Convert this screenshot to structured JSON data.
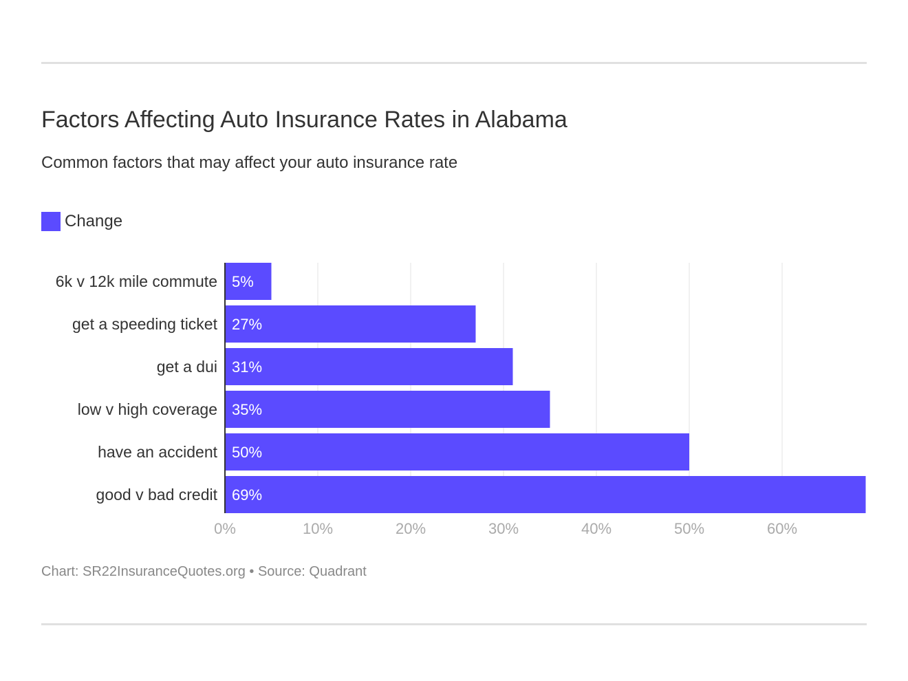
{
  "title": "Factors Affecting Auto Insurance Rates in Alabama",
  "subtitle": "Common factors that may affect your auto insurance rate",
  "footer": "Chart: SR22InsuranceQuotes.org • Source: Quadrant",
  "chart_data": {
    "type": "bar",
    "orientation": "horizontal",
    "categories": [
      "6k v 12k mile commute",
      "get a speeding ticket",
      "get a dui",
      "low v high coverage",
      "have an accident",
      "good v bad credit"
    ],
    "series": [
      {
        "name": "Change",
        "values": [
          5,
          27,
          31,
          35,
          50,
          69
        ],
        "color": "#5b4bff"
      }
    ],
    "data_labels": [
      "5%",
      "27%",
      "31%",
      "35%",
      "50%",
      "69%"
    ],
    "xticks": [
      0,
      10,
      20,
      30,
      40,
      50,
      60
    ],
    "xtick_labels": [
      "0%",
      "10%",
      "20%",
      "30%",
      "40%",
      "50%",
      "60%"
    ],
    "xlim": [
      0,
      69
    ],
    "grid": true,
    "legend": "top-left"
  }
}
